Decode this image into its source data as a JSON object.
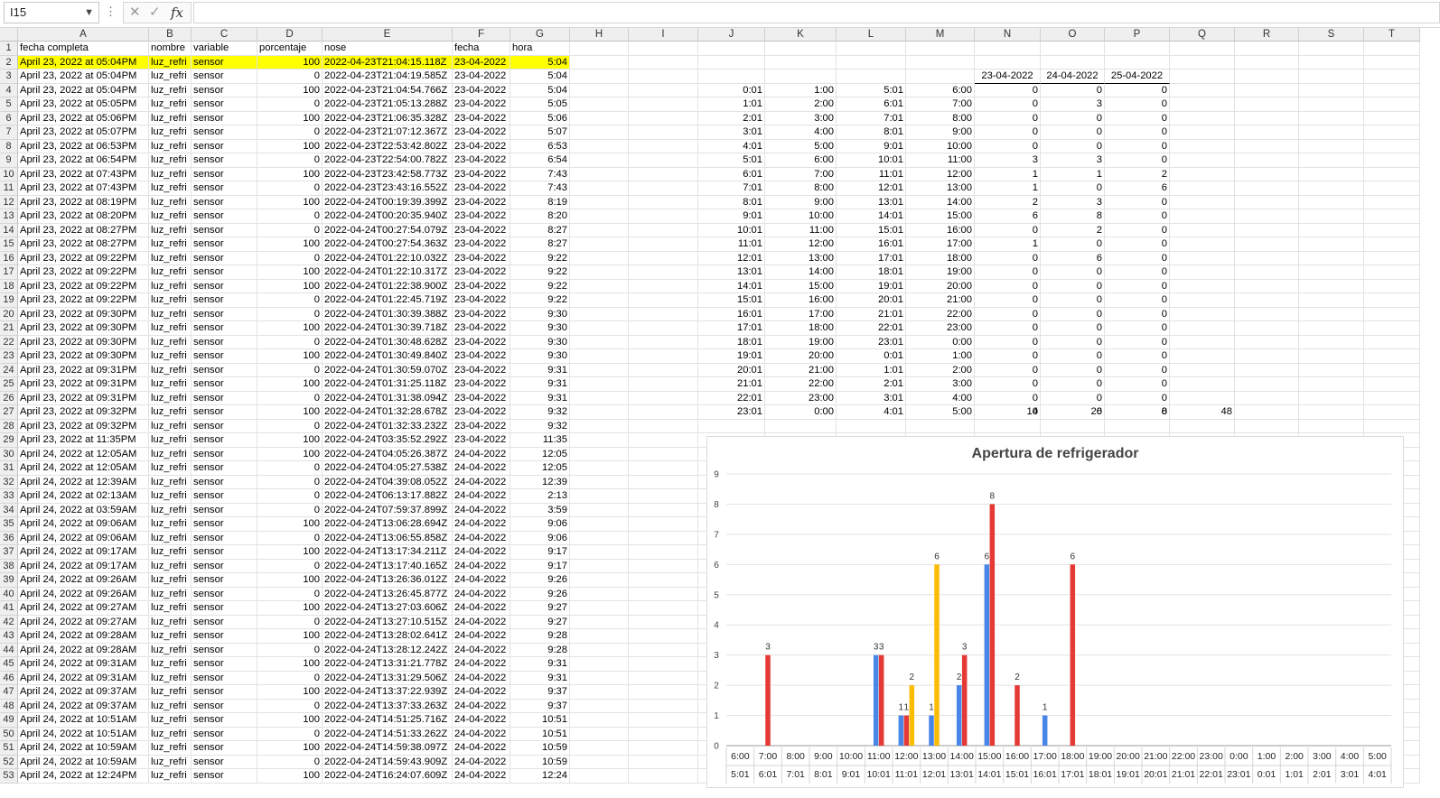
{
  "namebox": {
    "value": "I15"
  },
  "formula": {
    "icons": {
      "cancel": "✕",
      "enter": "✓",
      "fx": "fx"
    }
  },
  "columns": [
    "A",
    "B",
    "C",
    "D",
    "E",
    "F",
    "G",
    "H",
    "I",
    "J",
    "K",
    "L",
    "M",
    "N",
    "O",
    "P",
    "Q",
    "R",
    "S",
    "T"
  ],
  "rows": [
    [
      "fecha completa",
      "nombre",
      "variable",
      "porcentaje",
      "nose",
      "fecha",
      "hora"
    ],
    [
      "April 23, 2022 at 05:04PM",
      "luz_refri",
      "sensor",
      "100",
      "2022-04-23T21:04:15.118Z",
      "23-04-2022",
      "5:04"
    ],
    [
      "April 23, 2022 at 05:04PM",
      "luz_refri",
      "sensor",
      "0",
      "2022-04-23T21:04:19.585Z",
      "23-04-2022",
      "5:04"
    ],
    [
      "April 23, 2022 at 05:04PM",
      "luz_refri",
      "sensor",
      "100",
      "2022-04-23T21:04:54.766Z",
      "23-04-2022",
      "5:04"
    ],
    [
      "April 23, 2022 at 05:05PM",
      "luz_refri",
      "sensor",
      "0",
      "2022-04-23T21:05:13.288Z",
      "23-04-2022",
      "5:05"
    ],
    [
      "April 23, 2022 at 05:06PM",
      "luz_refri",
      "sensor",
      "100",
      "2022-04-23T21:06:35.328Z",
      "23-04-2022",
      "5:06"
    ],
    [
      "April 23, 2022 at 05:07PM",
      "luz_refri",
      "sensor",
      "0",
      "2022-04-23T21:07:12.367Z",
      "23-04-2022",
      "5:07"
    ],
    [
      "April 23, 2022 at 06:53PM",
      "luz_refri",
      "sensor",
      "100",
      "2022-04-23T22:53:42.802Z",
      "23-04-2022",
      "6:53"
    ],
    [
      "April 23, 2022 at 06:54PM",
      "luz_refri",
      "sensor",
      "0",
      "2022-04-23T22:54:00.782Z",
      "23-04-2022",
      "6:54"
    ],
    [
      "April 23, 2022 at 07:43PM",
      "luz_refri",
      "sensor",
      "100",
      "2022-04-23T23:42:58.773Z",
      "23-04-2022",
      "7:43"
    ],
    [
      "April 23, 2022 at 07:43PM",
      "luz_refri",
      "sensor",
      "0",
      "2022-04-23T23:43:16.552Z",
      "23-04-2022",
      "7:43"
    ],
    [
      "April 23, 2022 at 08:19PM",
      "luz_refri",
      "sensor",
      "100",
      "2022-04-24T00:19:39.399Z",
      "23-04-2022",
      "8:19"
    ],
    [
      "April 23, 2022 at 08:20PM",
      "luz_refri",
      "sensor",
      "0",
      "2022-04-24T00:20:35.940Z",
      "23-04-2022",
      "8:20"
    ],
    [
      "April 23, 2022 at 08:27PM",
      "luz_refri",
      "sensor",
      "0",
      "2022-04-24T00:27:54.079Z",
      "23-04-2022",
      "8:27"
    ],
    [
      "April 23, 2022 at 08:27PM",
      "luz_refri",
      "sensor",
      "100",
      "2022-04-24T00:27:54.363Z",
      "23-04-2022",
      "8:27"
    ],
    [
      "April 23, 2022 at 09:22PM",
      "luz_refri",
      "sensor",
      "0",
      "2022-04-24T01:22:10.032Z",
      "23-04-2022",
      "9:22"
    ],
    [
      "April 23, 2022 at 09:22PM",
      "luz_refri",
      "sensor",
      "100",
      "2022-04-24T01:22:10.317Z",
      "23-04-2022",
      "9:22"
    ],
    [
      "April 23, 2022 at 09:22PM",
      "luz_refri",
      "sensor",
      "100",
      "2022-04-24T01:22:38.900Z",
      "23-04-2022",
      "9:22"
    ],
    [
      "April 23, 2022 at 09:22PM",
      "luz_refri",
      "sensor",
      "0",
      "2022-04-24T01:22:45.719Z",
      "23-04-2022",
      "9:22"
    ],
    [
      "April 23, 2022 at 09:30PM",
      "luz_refri",
      "sensor",
      "0",
      "2022-04-24T01:30:39.388Z",
      "23-04-2022",
      "9:30"
    ],
    [
      "April 23, 2022 at 09:30PM",
      "luz_refri",
      "sensor",
      "100",
      "2022-04-24T01:30:39.718Z",
      "23-04-2022",
      "9:30"
    ],
    [
      "April 23, 2022 at 09:30PM",
      "luz_refri",
      "sensor",
      "0",
      "2022-04-24T01:30:48.628Z",
      "23-04-2022",
      "9:30"
    ],
    [
      "April 23, 2022 at 09:30PM",
      "luz_refri",
      "sensor",
      "100",
      "2022-04-24T01:30:49.840Z",
      "23-04-2022",
      "9:30"
    ],
    [
      "April 23, 2022 at 09:31PM",
      "luz_refri",
      "sensor",
      "0",
      "2022-04-24T01:30:59.070Z",
      "23-04-2022",
      "9:31"
    ],
    [
      "April 23, 2022 at 09:31PM",
      "luz_refri",
      "sensor",
      "100",
      "2022-04-24T01:31:25.118Z",
      "23-04-2022",
      "9:31"
    ],
    [
      "April 23, 2022 at 09:31PM",
      "luz_refri",
      "sensor",
      "0",
      "2022-04-24T01:31:38.094Z",
      "23-04-2022",
      "9:31"
    ],
    [
      "April 23, 2022 at 09:32PM",
      "luz_refri",
      "sensor",
      "100",
      "2022-04-24T01:32:28.678Z",
      "23-04-2022",
      "9:32"
    ],
    [
      "April 23, 2022 at 09:32PM",
      "luz_refri",
      "sensor",
      "0",
      "2022-04-24T01:32:33.232Z",
      "23-04-2022",
      "9:32"
    ],
    [
      "April 23, 2022 at 11:35PM",
      "luz_refri",
      "sensor",
      "100",
      "2022-04-24T03:35:52.292Z",
      "23-04-2022",
      "11:35"
    ],
    [
      "April 24, 2022 at 12:05AM",
      "luz_refri",
      "sensor",
      "100",
      "2022-04-24T04:05:26.387Z",
      "24-04-2022",
      "12:05"
    ],
    [
      "April 24, 2022 at 12:05AM",
      "luz_refri",
      "sensor",
      "0",
      "2022-04-24T04:05:27.538Z",
      "24-04-2022",
      "12:05"
    ],
    [
      "April 24, 2022 at 12:39AM",
      "luz_refri",
      "sensor",
      "0",
      "2022-04-24T04:39:08.052Z",
      "24-04-2022",
      "12:39"
    ],
    [
      "April 24, 2022 at 02:13AM",
      "luz_refri",
      "sensor",
      "0",
      "2022-04-24T06:13:17.882Z",
      "24-04-2022",
      "2:13"
    ],
    [
      "April 24, 2022 at 03:59AM",
      "luz_refri",
      "sensor",
      "0",
      "2022-04-24T07:59:37.899Z",
      "24-04-2022",
      "3:59"
    ],
    [
      "April 24, 2022 at 09:06AM",
      "luz_refri",
      "sensor",
      "100",
      "2022-04-24T13:06:28.694Z",
      "24-04-2022",
      "9:06"
    ],
    [
      "April 24, 2022 at 09:06AM",
      "luz_refri",
      "sensor",
      "0",
      "2022-04-24T13:06:55.858Z",
      "24-04-2022",
      "9:06"
    ],
    [
      "April 24, 2022 at 09:17AM",
      "luz_refri",
      "sensor",
      "100",
      "2022-04-24T13:17:34.211Z",
      "24-04-2022",
      "9:17"
    ],
    [
      "April 24, 2022 at 09:17AM",
      "luz_refri",
      "sensor",
      "0",
      "2022-04-24T13:17:40.165Z",
      "24-04-2022",
      "9:17"
    ],
    [
      "April 24, 2022 at 09:26AM",
      "luz_refri",
      "sensor",
      "100",
      "2022-04-24T13:26:36.012Z",
      "24-04-2022",
      "9:26"
    ],
    [
      "April 24, 2022 at 09:26AM",
      "luz_refri",
      "sensor",
      "0",
      "2022-04-24T13:26:45.877Z",
      "24-04-2022",
      "9:26"
    ],
    [
      "April 24, 2022 at 09:27AM",
      "luz_refri",
      "sensor",
      "100",
      "2022-04-24T13:27:03.606Z",
      "24-04-2022",
      "9:27"
    ],
    [
      "April 24, 2022 at 09:27AM",
      "luz_refri",
      "sensor",
      "0",
      "2022-04-24T13:27:10.515Z",
      "24-04-2022",
      "9:27"
    ],
    [
      "April 24, 2022 at 09:28AM",
      "luz_refri",
      "sensor",
      "100",
      "2022-04-24T13:28:02.641Z",
      "24-04-2022",
      "9:28"
    ],
    [
      "April 24, 2022 at 09:28AM",
      "luz_refri",
      "sensor",
      "0",
      "2022-04-24T13:28:12.242Z",
      "24-04-2022",
      "9:28"
    ],
    [
      "April 24, 2022 at 09:31AM",
      "luz_refri",
      "sensor",
      "100",
      "2022-04-24T13:31:21.778Z",
      "24-04-2022",
      "9:31"
    ],
    [
      "April 24, 2022 at 09:31AM",
      "luz_refri",
      "sensor",
      "0",
      "2022-04-24T13:31:29.506Z",
      "24-04-2022",
      "9:31"
    ],
    [
      "April 24, 2022 at 09:37AM",
      "luz_refri",
      "sensor",
      "100",
      "2022-04-24T13:37:22.939Z",
      "24-04-2022",
      "9:37"
    ],
    [
      "April 24, 2022 at 09:37AM",
      "luz_refri",
      "sensor",
      "0",
      "2022-04-24T13:37:33.263Z",
      "24-04-2022",
      "9:37"
    ],
    [
      "April 24, 2022 at 10:51AM",
      "luz_refri",
      "sensor",
      "100",
      "2022-04-24T14:51:25.716Z",
      "24-04-2022",
      "10:51"
    ],
    [
      "April 24, 2022 at 10:51AM",
      "luz_refri",
      "sensor",
      "0",
      "2022-04-24T14:51:33.262Z",
      "24-04-2022",
      "10:51"
    ],
    [
      "April 24, 2022 at 10:59AM",
      "luz_refri",
      "sensor",
      "100",
      "2022-04-24T14:59:38.097Z",
      "24-04-2022",
      "10:59"
    ],
    [
      "April 24, 2022 at 10:59AM",
      "luz_refri",
      "sensor",
      "0",
      "2022-04-24T14:59:43.909Z",
      "24-04-2022",
      "10:59"
    ],
    [
      "April 24, 2022 at 12:24PM",
      "luz_refri",
      "sensor",
      "100",
      "2022-04-24T16:24:07.609Z",
      "24-04-2022",
      "12:24"
    ]
  ],
  "summary": {
    "headers": [
      "23-04-2022",
      "24-04-2022",
      "25-04-2022"
    ],
    "rows": [
      [
        "0:01",
        "1:00",
        "5:01",
        "6:00",
        "0",
        "0",
        "0"
      ],
      [
        "1:01",
        "2:00",
        "6:01",
        "7:00",
        "0",
        "3",
        "0"
      ],
      [
        "2:01",
        "3:00",
        "7:01",
        "8:00",
        "0",
        "0",
        "0"
      ],
      [
        "3:01",
        "4:00",
        "8:01",
        "9:00",
        "0",
        "0",
        "0"
      ],
      [
        "4:01",
        "5:00",
        "9:01",
        "10:00",
        "0",
        "0",
        "0"
      ],
      [
        "5:01",
        "6:00",
        "10:01",
        "11:00",
        "3",
        "3",
        "0"
      ],
      [
        "6:01",
        "7:00",
        "11:01",
        "12:00",
        "1",
        "1",
        "2"
      ],
      [
        "7:01",
        "8:00",
        "12:01",
        "13:00",
        "1",
        "0",
        "6"
      ],
      [
        "8:01",
        "9:00",
        "13:01",
        "14:00",
        "2",
        "3",
        "0"
      ],
      [
        "9:01",
        "10:00",
        "14:01",
        "15:00",
        "6",
        "8",
        "0"
      ],
      [
        "10:01",
        "11:00",
        "15:01",
        "16:00",
        "0",
        "2",
        "0"
      ],
      [
        "11:01",
        "12:00",
        "16:01",
        "17:00",
        "1",
        "0",
        "0"
      ],
      [
        "12:01",
        "13:00",
        "17:01",
        "18:00",
        "0",
        "6",
        "0"
      ],
      [
        "13:01",
        "14:00",
        "18:01",
        "19:00",
        "0",
        "0",
        "0"
      ],
      [
        "14:01",
        "15:00",
        "19:01",
        "20:00",
        "0",
        "0",
        "0"
      ],
      [
        "15:01",
        "16:00",
        "20:01",
        "21:00",
        "0",
        "0",
        "0"
      ],
      [
        "16:01",
        "17:00",
        "21:01",
        "22:00",
        "0",
        "0",
        "0"
      ],
      [
        "17:01",
        "18:00",
        "22:01",
        "23:00",
        "0",
        "0",
        "0"
      ],
      [
        "18:01",
        "19:00",
        "23:01",
        "0:00",
        "0",
        "0",
        "0"
      ],
      [
        "19:01",
        "20:00",
        "0:01",
        "1:00",
        "0",
        "0",
        "0"
      ],
      [
        "20:01",
        "21:00",
        "1:01",
        "2:00",
        "0",
        "0",
        "0"
      ],
      [
        "21:01",
        "22:00",
        "2:01",
        "3:00",
        "0",
        "0",
        "0"
      ],
      [
        "22:01",
        "23:00",
        "3:01",
        "4:00",
        "0",
        "0",
        "0"
      ],
      [
        "23:01",
        "0:00",
        "4:01",
        "5:00",
        "0",
        "0",
        "0"
      ]
    ],
    "totals": [
      "14",
      "26",
      "8"
    ],
    "grand_total": "48"
  },
  "colors": {
    "highlight": "#ffff00",
    "blue": "#4a86e8",
    "red": "#e53935",
    "yellow": "#fbbc04"
  },
  "chart_data": {
    "type": "bar",
    "title": "Apertura de refrigerador",
    "ylim": [
      0,
      9
    ],
    "yticks": [
      "0",
      "1",
      "2",
      "3",
      "4",
      "5",
      "6",
      "7",
      "8",
      "9"
    ],
    "categories": [
      "6:00",
      "7:00",
      "8:00",
      "9:00",
      "10:00",
      "11:00",
      "12:00",
      "13:00",
      "14:00",
      "15:00",
      "16:00",
      "17:00",
      "18:00",
      "19:00",
      "20:00",
      "21:00",
      "22:00",
      "23:00",
      "0:00",
      "1:00",
      "2:00",
      "3:00",
      "4:00",
      "5:00"
    ],
    "categories2": [
      "5:01",
      "6:01",
      "7:01",
      "8:01",
      "9:01",
      "10:01",
      "11:01",
      "12:01",
      "13:01",
      "14:01",
      "15:01",
      "16:01",
      "17:01",
      "18:01",
      "19:01",
      "20:01",
      "21:01",
      "22:01",
      "23:01",
      "0:01",
      "1:01",
      "2:01",
      "3:01",
      "4:01"
    ],
    "series": [
      {
        "name": "23-04-2022",
        "color": "#4a86e8",
        "values": [
          0,
          0,
          0,
          0,
          0,
          3,
          1,
          1,
          2,
          6,
          0,
          1,
          0,
          0,
          0,
          0,
          0,
          0,
          0,
          0,
          0,
          0,
          0,
          0
        ]
      },
      {
        "name": "24-04-2022",
        "color": "#e53935",
        "values": [
          0,
          3,
          0,
          0,
          0,
          3,
          1,
          0,
          3,
          8,
          2,
          0,
          6,
          0,
          0,
          0,
          0,
          0,
          0,
          0,
          0,
          0,
          0,
          0
        ]
      },
      {
        "name": "25-04-2022",
        "color": "#fbbc04",
        "values": [
          0,
          0,
          0,
          0,
          0,
          0,
          2,
          6,
          0,
          0,
          0,
          0,
          0,
          0,
          0,
          0,
          0,
          0,
          0,
          0,
          0,
          0,
          0,
          0
        ]
      }
    ]
  }
}
